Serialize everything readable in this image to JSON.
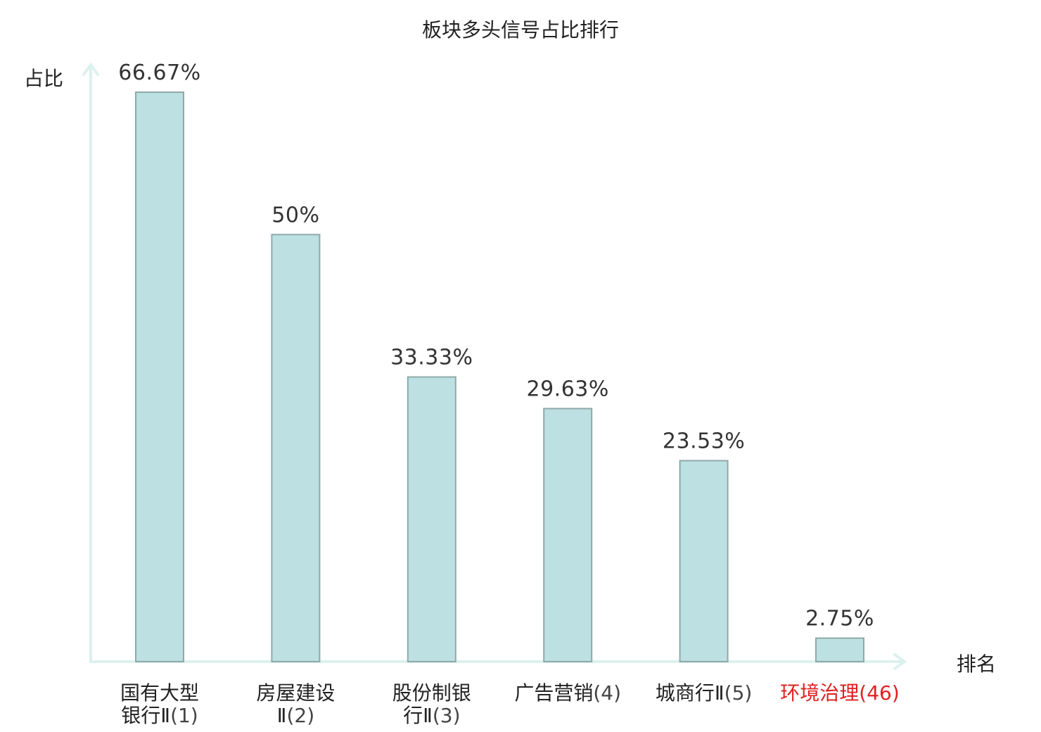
{
  "chart_data": {
    "type": "bar",
    "title": "板块多头信号占比排行",
    "xlabel": "排名",
    "ylabel": "占比",
    "ylim": [
      0,
      70
    ],
    "grid": false,
    "categories": [
      {
        "name_lines": [
          "国有大型",
          "银行Ⅱ"
        ],
        "rank": "(1)",
        "highlight": false
      },
      {
        "name_lines": [
          "房屋建设",
          "Ⅱ"
        ],
        "rank": "(2)",
        "highlight": false
      },
      {
        "name_lines": [
          "股份制银",
          "行Ⅱ"
        ],
        "rank": "(3)",
        "highlight": false
      },
      {
        "name_lines": [
          "广告营销"
        ],
        "rank": "(4)",
        "highlight": false
      },
      {
        "name_lines": [
          "城商行Ⅱ"
        ],
        "rank": "(5)",
        "highlight": false
      },
      {
        "name_lines": [
          "环境治理"
        ],
        "rank": "(46)",
        "highlight": true
      }
    ],
    "values": [
      66.67,
      50,
      33.33,
      29.63,
      23.53,
      2.75
    ],
    "value_labels": [
      "66.67%",
      "50%",
      "33.33%",
      "29.63%",
      "23.53%",
      "2.75%"
    ],
    "colors": {
      "bar_fill": "#bde0e3",
      "bar_stroke": "#8fa9aa",
      "axis": "#dcf1ed",
      "highlight_text": "#e02020"
    }
  }
}
